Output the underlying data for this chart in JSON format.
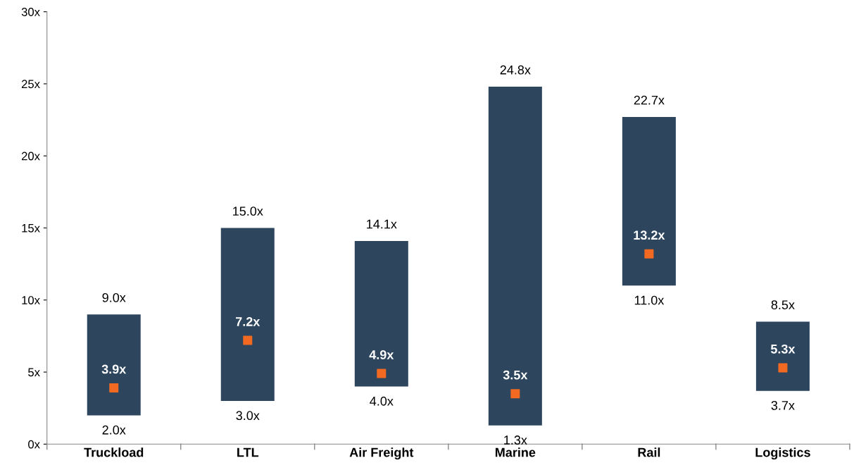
{
  "chart_data": {
    "type": "bar",
    "categories": [
      "Truckload",
      "LTL",
      "Air Freight",
      "Marine",
      "Rail",
      "Logistics"
    ],
    "series": [
      {
        "color": "#2d465e",
        "base": [
          2.0,
          3.0,
          4.0,
          1.3,
          11.0,
          3.7
        ],
        "values": [
          7.0,
          12.0,
          10.1,
          23.5,
          11.7,
          4.8
        ]
      },
      {
        "type": "scatter",
        "color": "#f26a21",
        "x": [
          "Truckload",
          "LTL",
          "Air Freight",
          "Marine",
          "Rail",
          "Logistics"
        ],
        "values": [
          3.9,
          7.2,
          4.9,
          3.5,
          13.2,
          5.3
        ],
        "value_labels": [
          "3.9x",
          "7.2x",
          "4.9x",
          "3.5x",
          "13.2x",
          "5.3x"
        ]
      }
    ],
    "annotations": [
      {
        "text": "9.0x",
        "x": "Truckload",
        "y": 9.0
      },
      {
        "text": "2.0x",
        "x": "Truckload",
        "y": 2.0
      },
      {
        "text": "15.0x",
        "x": "LTL",
        "y": 15.0
      },
      {
        "text": "3.0x",
        "x": "LTL",
        "y": 3.0
      },
      {
        "text": "14.1x",
        "x": "Air Freight",
        "y": 14.1
      },
      {
        "text": "4.0x",
        "x": "Air Freight",
        "y": 4.0
      },
      {
        "text": "24.8x",
        "x": "Marine",
        "y": 24.8
      },
      {
        "text": "1.3x",
        "x": "Marine",
        "y": 1.3
      },
      {
        "text": "22.7x",
        "x": "Rail",
        "y": 22.7
      },
      {
        "text": "11.0x",
        "x": "Rail",
        "y": 11.0
      },
      {
        "text": "8.5x",
        "x": "Logistics",
        "y": 8.5
      },
      {
        "text": "3.7x",
        "x": "Logistics",
        "y": 3.7
      }
    ],
    "ylim": [
      0,
      30
    ],
    "yticks": [
      {
        "value": 0,
        "label": "0x"
      },
      {
        "value": 5,
        "label": "5x"
      },
      {
        "value": 10,
        "label": "10x"
      },
      {
        "value": 15,
        "label": "15x"
      },
      {
        "value": 20,
        "label": "20x"
      },
      {
        "value": 25,
        "label": "25x"
      },
      {
        "value": 30,
        "label": "30x"
      }
    ],
    "grid": false,
    "legend": false
  }
}
